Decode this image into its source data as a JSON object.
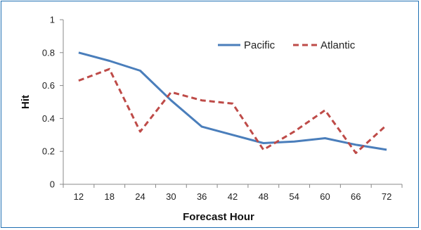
{
  "chart_data": {
    "type": "line",
    "title": "",
    "xlabel": "Forecast  Hour",
    "ylabel": "Hit",
    "categories": [
      "12",
      "18",
      "24",
      "30",
      "36",
      "42",
      "48",
      "54",
      "60",
      "66",
      "72"
    ],
    "ylim": [
      0,
      1
    ],
    "yticks": [
      "0",
      "0.2",
      "0.4",
      "0.6",
      "0.8",
      "1"
    ],
    "grid": false,
    "legend_position": "top-right",
    "series": [
      {
        "name": "Pacific",
        "color": "#4a7ebb",
        "style": "solid",
        "values": [
          0.8,
          0.75,
          0.69,
          0.51,
          0.35,
          0.3,
          0.25,
          0.26,
          0.28,
          0.24,
          0.21
        ]
      },
      {
        "name": "Atlantic",
        "color": "#be4b48",
        "style": "dashed",
        "values": [
          0.63,
          0.7,
          0.32,
          0.56,
          0.51,
          0.49,
          0.21,
          0.32,
          0.45,
          0.19,
          0.36
        ]
      }
    ]
  }
}
